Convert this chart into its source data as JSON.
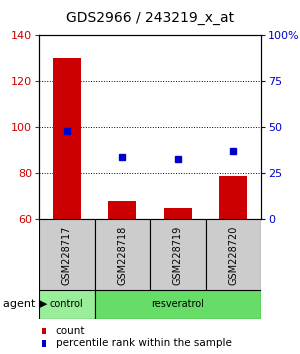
{
  "title": "GDS2966 / 243219_x_at",
  "samples": [
    "GSM228717",
    "GSM228718",
    "GSM228719",
    "GSM228720"
  ],
  "counts": [
    130,
    68,
    65,
    79
  ],
  "percentile_ranks": [
    48,
    34,
    33,
    37
  ],
  "ylim_left": [
    60,
    140
  ],
  "ylim_right": [
    0,
    100
  ],
  "yticks_left": [
    60,
    80,
    100,
    120,
    140
  ],
  "yticks_right": [
    0,
    25,
    50,
    75,
    100
  ],
  "yticklabels_right": [
    "0",
    "25",
    "50",
    "75",
    "100%"
  ],
  "bar_color": "#cc0000",
  "dot_color": "#0000cc",
  "agent_label": "agent",
  "agent_groups": [
    "control",
    "resveratrol"
  ],
  "agent_color_control": "#99ee99",
  "agent_color_resveratrol": "#66dd66",
  "legend_count_label": "count",
  "legend_pct_label": "percentile rank within the sample",
  "title_fontsize": 10,
  "tick_fontsize": 8,
  "bar_width": 0.5
}
